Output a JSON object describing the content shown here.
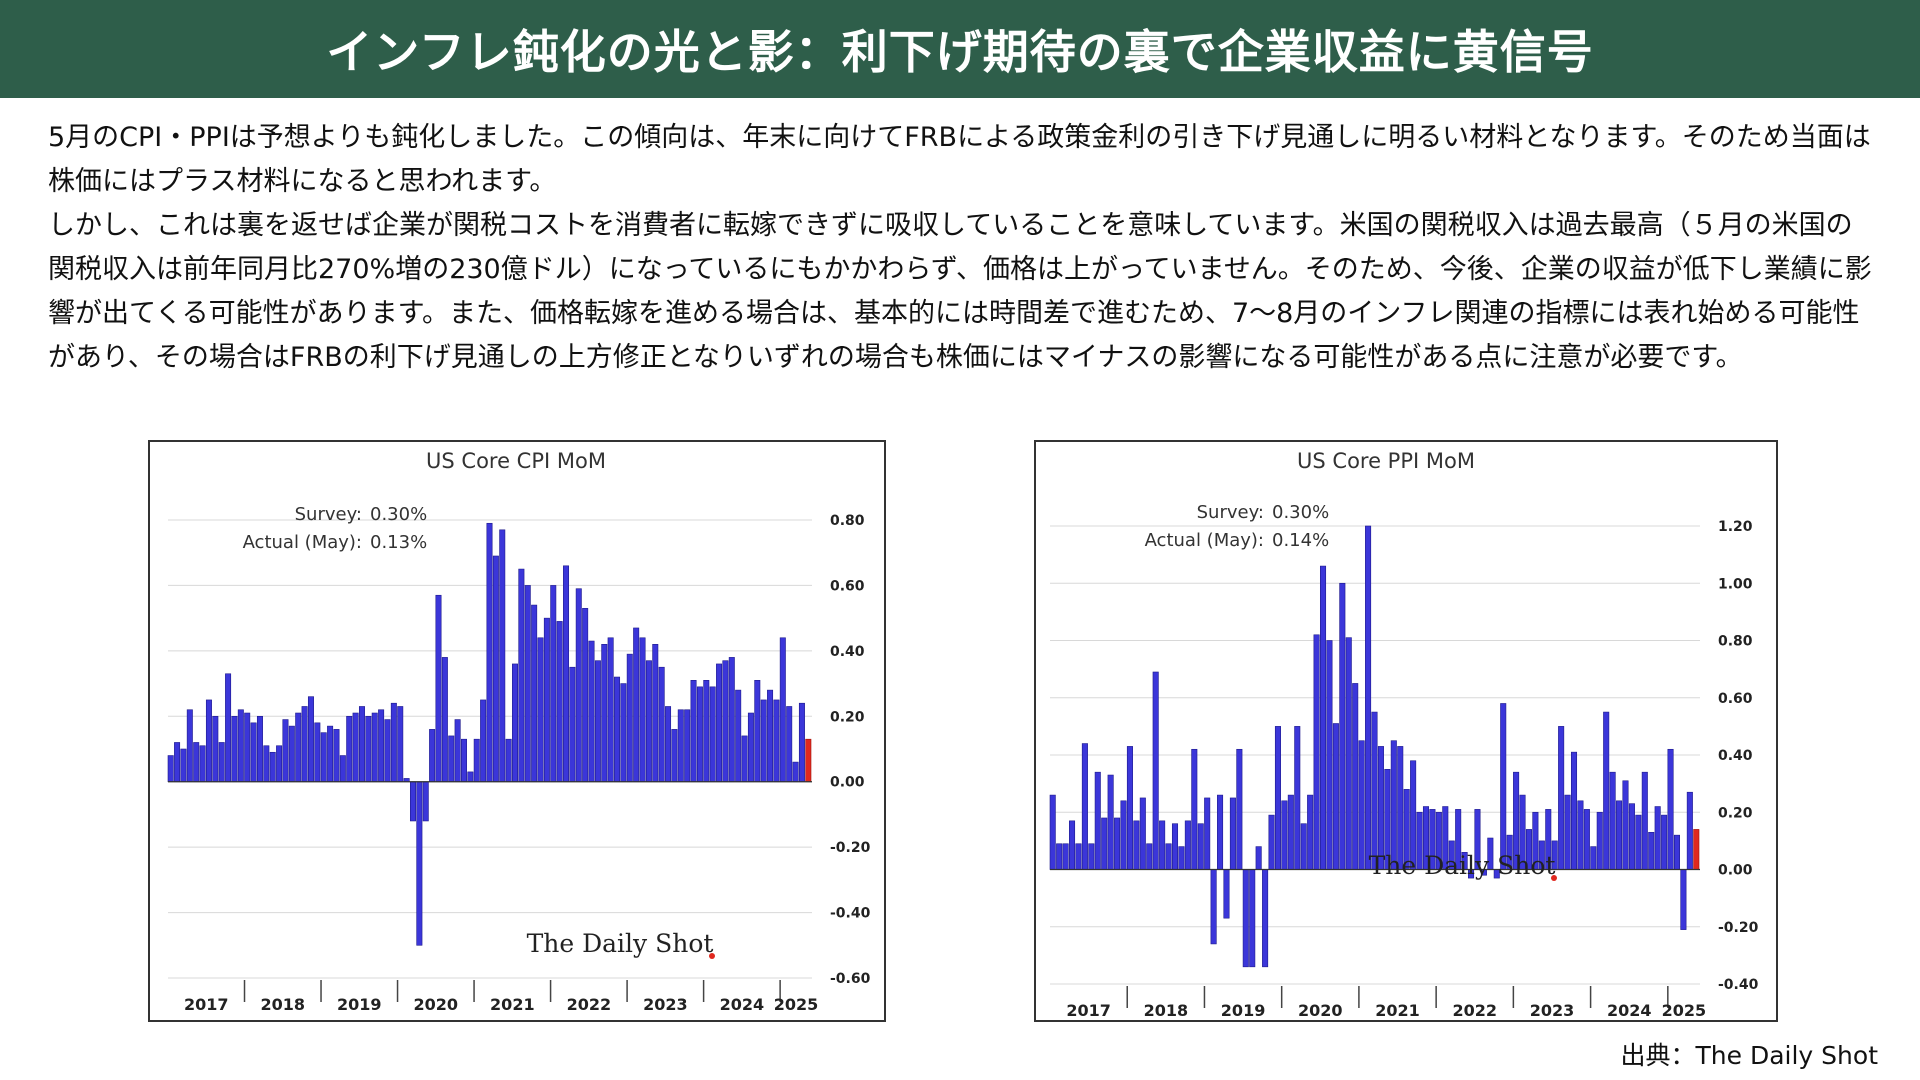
{
  "header": {
    "title": "インフレ鈍化の光と影：利下げ期待の裏で企業収益に黄信号"
  },
  "body": {
    "para1": "5月のCPI・PPIは予想よりも鈍化しました。この傾向は、年末に向けてFRBによる政策金利の引き下げ見通しに明るい材料となります。そのため当面は株価にはプラス材料になると思われます。",
    "para2": "しかし、これは裏を返せば企業が関税コストを消費者に転嫁できずに吸収していることを意味しています。米国の関税収入は過去最高（５月の米国の関税収入は前年同月比270%増の230億ドル）になっているにもかかわらず、価格は上がっていません。そのため、今後、企業の収益が低下し業績に影響が出てくる可能性があります。また、価格転嫁を進める場合は、基本的には時間差で進むため、7〜8月のインフレ関連の指標には表れ始める可能性があり、その場合はFRBの利下げ見通しの上方修正となりいずれの場合も株価にはマイナスの影響になる可能性がある点に注意が必要です。"
  },
  "source": "出典：The Daily Shot",
  "colors": {
    "header_bg": "#2e5e4a",
    "bar": "#3b36d9",
    "latest_bar": "#e0281e",
    "grid": "#d8d8d8"
  },
  "chart_data": [
    {
      "type": "bar",
      "title": "US Core CPI MoM",
      "survey_label": "Survey:",
      "survey_value": "0.30%",
      "actual_label": "Actual (May):",
      "actual_value": "0.13%",
      "watermark": "The Daily Shot",
      "ylim": [
        -0.6,
        0.8
      ],
      "yticks": [
        0.8,
        0.6,
        0.4,
        0.2,
        0.0,
        -0.2,
        -0.4,
        -0.6
      ],
      "ytick_labels": [
        "0.80",
        "0.60",
        "0.40",
        "0.20",
        "0.00",
        "-0.20",
        "-0.40",
        "-0.60"
      ],
      "x_labels": [
        "2017",
        "2018",
        "2019",
        "2020",
        "2021",
        "2022",
        "2023",
        "2024",
        "2025"
      ],
      "x_start": "2017-01",
      "values": [
        0.08,
        0.12,
        0.1,
        0.22,
        0.12,
        0.11,
        0.25,
        0.2,
        0.12,
        0.33,
        0.2,
        0.22,
        0.21,
        0.18,
        0.2,
        0.11,
        0.09,
        0.11,
        0.19,
        0.17,
        0.21,
        0.23,
        0.26,
        0.18,
        0.15,
        0.17,
        0.16,
        0.08,
        0.2,
        0.21,
        0.23,
        0.2,
        0.21,
        0.22,
        0.19,
        0.24,
        0.23,
        0.01,
        -0.12,
        -0.5,
        -0.12,
        0.16,
        0.57,
        0.38,
        0.14,
        0.19,
        0.13,
        0.03,
        0.13,
        0.25,
        0.79,
        0.69,
        0.77,
        0.13,
        0.36,
        0.65,
        0.6,
        0.54,
        0.44,
        0.5,
        0.6,
        0.49,
        0.66,
        0.35,
        0.59,
        0.53,
        0.43,
        0.37,
        0.42,
        0.44,
        0.32,
        0.3,
        0.39,
        0.47,
        0.44,
        0.37,
        0.42,
        0.35,
        0.23,
        0.16,
        0.22,
        0.22,
        0.31,
        0.29,
        0.31,
        0.29,
        0.36,
        0.37,
        0.38,
        0.28,
        0.14,
        0.21,
        0.31,
        0.25,
        0.28,
        0.25,
        0.44,
        0.23,
        0.06,
        0.24,
        0.13
      ]
    },
    {
      "type": "bar",
      "title": "US Core PPI MoM",
      "survey_label": "Survey:",
      "survey_value": "0.30%",
      "actual_label": "Actual (May):",
      "actual_value": "0.14%",
      "watermark": "The Daily Shot",
      "ylim": [
        -0.4,
        1.2
      ],
      "yticks": [
        1.2,
        1.0,
        0.8,
        0.6,
        0.4,
        0.2,
        0.0,
        -0.2,
        -0.4
      ],
      "ytick_labels": [
        "1.20",
        "1.00",
        "0.80",
        "0.60",
        "0.40",
        "0.20",
        "0.00",
        "-0.20",
        "-0.40"
      ],
      "x_labels": [
        "2017",
        "2018",
        "2019",
        "2020",
        "2021",
        "2022",
        "2023",
        "2024",
        "2025"
      ],
      "x_start": "2017-01",
      "values": [
        0.26,
        0.09,
        0.09,
        0.17,
        0.09,
        0.44,
        0.09,
        0.34,
        0.18,
        0.33,
        0.18,
        0.24,
        0.43,
        0.17,
        0.25,
        0.09,
        0.69,
        0.17,
        0.09,
        0.16,
        0.08,
        0.17,
        0.42,
        0.16,
        0.25,
        -0.26,
        0.26,
        -0.17,
        0.25,
        0.42,
        -0.34,
        -0.34,
        0.08,
        -0.34,
        0.19,
        0.5,
        0.24,
        0.26,
        0.5,
        0.16,
        0.26,
        0.82,
        1.06,
        0.8,
        0.51,
        1.0,
        0.81,
        0.65,
        0.45,
        1.2,
        0.55,
        0.43,
        0.35,
        0.45,
        0.43,
        0.28,
        0.38,
        0.2,
        0.22,
        0.21,
        0.2,
        0.22,
        0.1,
        0.21,
        0.06,
        -0.03,
        0.21,
        -0.02,
        0.11,
        -0.03,
        0.58,
        0.12,
        0.34,
        0.26,
        0.14,
        0.2,
        0.1,
        0.21,
        0.1,
        0.5,
        0.26,
        0.41,
        0.24,
        0.21,
        0.08,
        0.2,
        0.55,
        0.34,
        0.24,
        0.31,
        0.23,
        0.19,
        0.34,
        0.13,
        0.22,
        0.19,
        0.42,
        0.12,
        -0.21,
        0.27,
        0.14
      ]
    }
  ]
}
